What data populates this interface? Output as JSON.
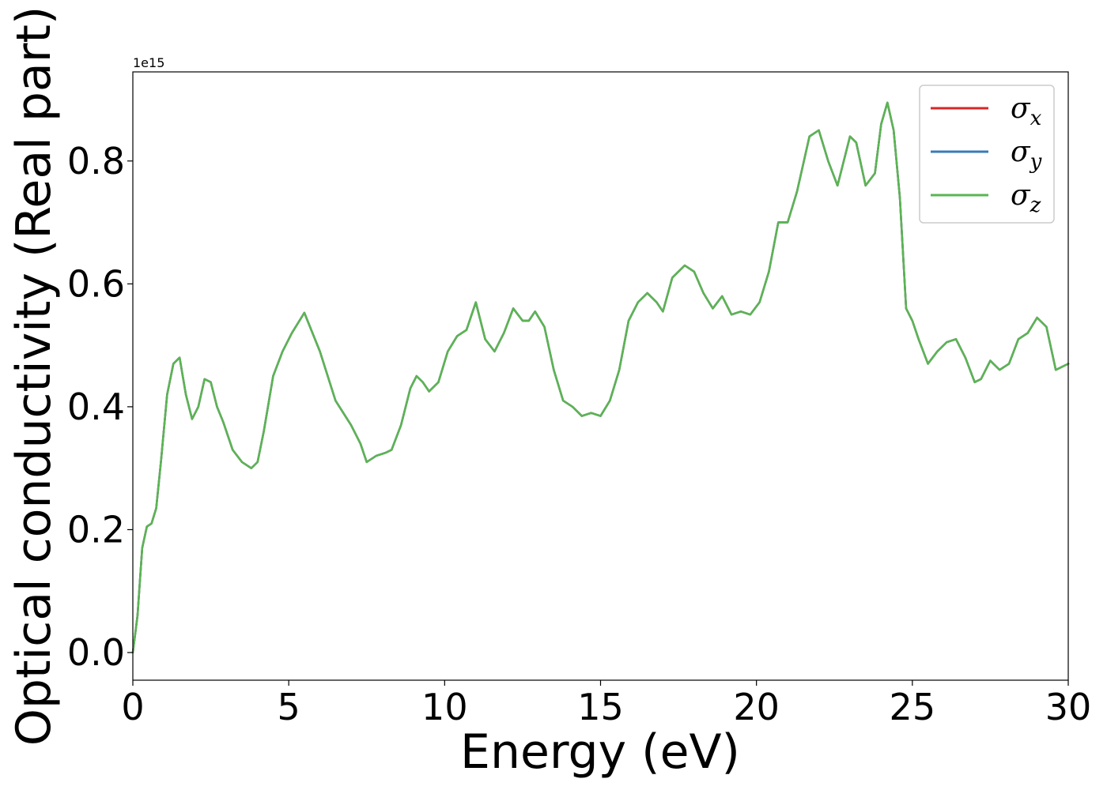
{
  "chart_data": {
    "type": "line",
    "xlabel": "Energy (eV)",
    "ylabel": "Optical conductivity (Real part)",
    "y_offset_label": "1e15",
    "xlim": [
      0,
      30
    ],
    "ylim": [
      -0.045,
      0.945
    ],
    "x_ticks": [
      0,
      5,
      10,
      15,
      20,
      25,
      30
    ],
    "x_tick_labels": [
      "0",
      "5",
      "10",
      "15",
      "20",
      "25",
      "30"
    ],
    "y_ticks": [
      0.0,
      0.2,
      0.4,
      0.6,
      0.8
    ],
    "y_tick_labels": [
      "0.0",
      "0.2",
      "0.4",
      "0.6",
      "0.8"
    ],
    "grid": false,
    "legend_position": "top-right",
    "legend": [
      {
        "symbol": "σ",
        "sub": "x",
        "color": "#d62728"
      },
      {
        "symbol": "σ",
        "sub": "y",
        "color": "#3a7ab8"
      },
      {
        "symbol": "σ",
        "sub": "z",
        "color": "#5ab552"
      }
    ],
    "x": [
      0,
      0.15,
      0.3,
      0.45,
      0.6,
      0.75,
      0.9,
      1.1,
      1.3,
      1.5,
      1.7,
      1.9,
      2.1,
      2.3,
      2.5,
      2.7,
      2.9,
      3.2,
      3.5,
      3.8,
      4.0,
      4.2,
      4.5,
      4.8,
      5.1,
      5.5,
      6.0,
      6.5,
      7.0,
      7.3,
      7.5,
      7.8,
      8.1,
      8.3,
      8.6,
      8.9,
      9.1,
      9.3,
      9.5,
      9.8,
      10.1,
      10.4,
      10.7,
      11.0,
      11.3,
      11.6,
      11.9,
      12.2,
      12.5,
      12.7,
      12.9,
      13.2,
      13.5,
      13.8,
      14.1,
      14.4,
      14.7,
      15.0,
      15.3,
      15.6,
      15.9,
      16.2,
      16.5,
      16.8,
      17.0,
      17.3,
      17.7,
      18.0,
      18.3,
      18.6,
      18.9,
      19.2,
      19.5,
      19.8,
      20.1,
      20.4,
      20.7,
      21.0,
      21.3,
      21.7,
      22.0,
      22.3,
      22.6,
      22.8,
      23.0,
      23.2,
      23.5,
      23.8,
      24.0,
      24.2,
      24.4,
      24.6,
      24.8,
      25.0,
      25.2,
      25.5,
      25.8,
      26.1,
      26.4,
      26.7,
      27.0,
      27.2,
      27.5,
      27.8,
      28.1,
      28.4,
      28.7,
      29.0,
      29.3,
      29.6,
      30.0
    ],
    "series": [
      {
        "color": "#d62728",
        "values": [
          0.0,
          0.06,
          0.17,
          0.205,
          0.21,
          0.235,
          0.31,
          0.42,
          0.47,
          0.48,
          0.42,
          0.38,
          0.4,
          0.445,
          0.44,
          0.4,
          0.375,
          0.33,
          0.31,
          0.3,
          0.31,
          0.36,
          0.45,
          0.49,
          0.52,
          0.553,
          0.49,
          0.41,
          0.37,
          0.34,
          0.31,
          0.32,
          0.325,
          0.33,
          0.37,
          0.43,
          0.45,
          0.44,
          0.425,
          0.44,
          0.49,
          0.515,
          0.525,
          0.57,
          0.51,
          0.49,
          0.52,
          0.56,
          0.54,
          0.54,
          0.555,
          0.53,
          0.46,
          0.41,
          0.4,
          0.385,
          0.39,
          0.385,
          0.41,
          0.46,
          0.54,
          0.57,
          0.585,
          0.57,
          0.555,
          0.61,
          0.63,
          0.62,
          0.585,
          0.56,
          0.58,
          0.55,
          0.555,
          0.55,
          0.57,
          0.62,
          0.7,
          0.7,
          0.75,
          0.84,
          0.85,
          0.8,
          0.76,
          0.8,
          0.84,
          0.83,
          0.76,
          0.78,
          0.86,
          0.895,
          0.85,
          0.74,
          0.56,
          0.54,
          0.51,
          0.47,
          0.49,
          0.505,
          0.51,
          0.48,
          0.44,
          0.445,
          0.475,
          0.46,
          0.47,
          0.51,
          0.52,
          0.545,
          0.53,
          0.46,
          0.47
        ]
      },
      {
        "color": "#3a7ab8",
        "values": [
          0.0,
          0.06,
          0.17,
          0.205,
          0.21,
          0.235,
          0.31,
          0.42,
          0.47,
          0.48,
          0.42,
          0.38,
          0.4,
          0.445,
          0.44,
          0.4,
          0.375,
          0.33,
          0.31,
          0.3,
          0.31,
          0.36,
          0.45,
          0.49,
          0.52,
          0.553,
          0.49,
          0.41,
          0.37,
          0.34,
          0.31,
          0.32,
          0.325,
          0.33,
          0.37,
          0.43,
          0.45,
          0.44,
          0.425,
          0.44,
          0.49,
          0.515,
          0.525,
          0.57,
          0.51,
          0.49,
          0.52,
          0.56,
          0.54,
          0.54,
          0.555,
          0.53,
          0.46,
          0.41,
          0.4,
          0.385,
          0.39,
          0.385,
          0.41,
          0.46,
          0.54,
          0.57,
          0.585,
          0.57,
          0.555,
          0.61,
          0.63,
          0.62,
          0.585,
          0.56,
          0.58,
          0.55,
          0.555,
          0.55,
          0.57,
          0.62,
          0.7,
          0.7,
          0.75,
          0.84,
          0.85,
          0.8,
          0.76,
          0.8,
          0.84,
          0.83,
          0.76,
          0.78,
          0.86,
          0.895,
          0.85,
          0.74,
          0.56,
          0.54,
          0.51,
          0.47,
          0.49,
          0.505,
          0.51,
          0.48,
          0.44,
          0.445,
          0.475,
          0.46,
          0.47,
          0.51,
          0.52,
          0.545,
          0.53,
          0.46,
          0.47
        ]
      },
      {
        "color": "#5ab552",
        "values": [
          0.0,
          0.06,
          0.17,
          0.205,
          0.21,
          0.235,
          0.31,
          0.42,
          0.47,
          0.48,
          0.42,
          0.38,
          0.4,
          0.445,
          0.44,
          0.4,
          0.375,
          0.33,
          0.31,
          0.3,
          0.31,
          0.36,
          0.45,
          0.49,
          0.52,
          0.553,
          0.49,
          0.41,
          0.37,
          0.34,
          0.31,
          0.32,
          0.325,
          0.33,
          0.37,
          0.43,
          0.45,
          0.44,
          0.425,
          0.44,
          0.49,
          0.515,
          0.525,
          0.57,
          0.51,
          0.49,
          0.52,
          0.56,
          0.54,
          0.54,
          0.555,
          0.53,
          0.46,
          0.41,
          0.4,
          0.385,
          0.39,
          0.385,
          0.41,
          0.46,
          0.54,
          0.57,
          0.585,
          0.57,
          0.555,
          0.61,
          0.63,
          0.62,
          0.585,
          0.56,
          0.58,
          0.55,
          0.555,
          0.55,
          0.57,
          0.62,
          0.7,
          0.7,
          0.75,
          0.84,
          0.85,
          0.8,
          0.76,
          0.8,
          0.84,
          0.83,
          0.76,
          0.78,
          0.86,
          0.895,
          0.85,
          0.74,
          0.56,
          0.54,
          0.51,
          0.47,
          0.49,
          0.505,
          0.51,
          0.48,
          0.44,
          0.445,
          0.475,
          0.46,
          0.47,
          0.51,
          0.52,
          0.545,
          0.53,
          0.46,
          0.47
        ]
      }
    ]
  }
}
